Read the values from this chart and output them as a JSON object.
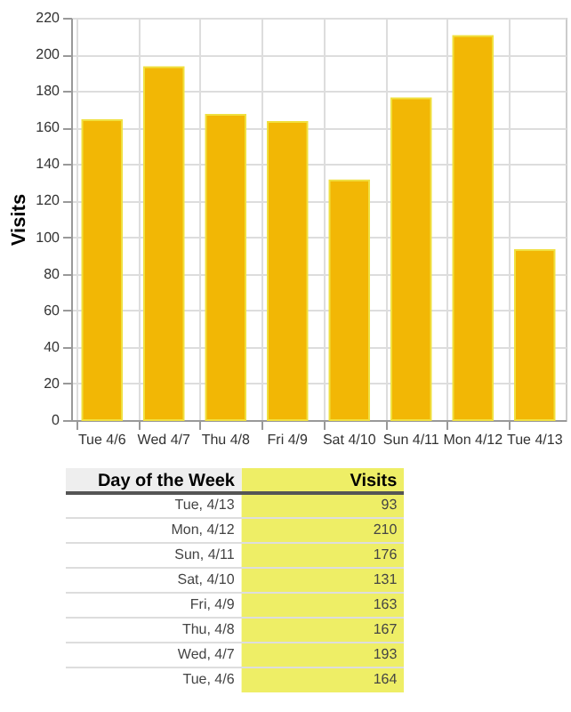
{
  "chart_data": [
    {
      "type": "bar",
      "ylabel": "Visits",
      "categories": [
        "Tue 4/6",
        "Wed 4/7",
        "Thu 4/8",
        "Fri 4/9",
        "Sat 4/10",
        "Sun 4/11",
        "Mon 4/12",
        "Tue 4/13"
      ],
      "values": [
        164,
        193,
        167,
        163,
        131,
        176,
        210,
        93
      ],
      "color": "#f2b705",
      "ylim": [
        0,
        220
      ],
      "yticks": [
        0,
        20,
        40,
        60,
        80,
        100,
        120,
        140,
        160,
        180,
        200,
        220
      ],
      "grid": true
    },
    {
      "type": "other",
      "xlabel": "Day of the Week",
      "ylabel": "Visits",
      "categories": [
        "Tue, 4/13",
        "Mon, 4/12",
        "Sun, 4/11",
        "Sat, 4/10",
        "Fri, 4/9",
        "Thu, 4/8",
        "Wed, 4/7",
        "Tue, 4/6"
      ],
      "values": [
        93,
        210,
        176,
        131,
        163,
        167,
        193,
        164
      ],
      "color": "#eeee66",
      "data_labels": true
    }
  ]
}
